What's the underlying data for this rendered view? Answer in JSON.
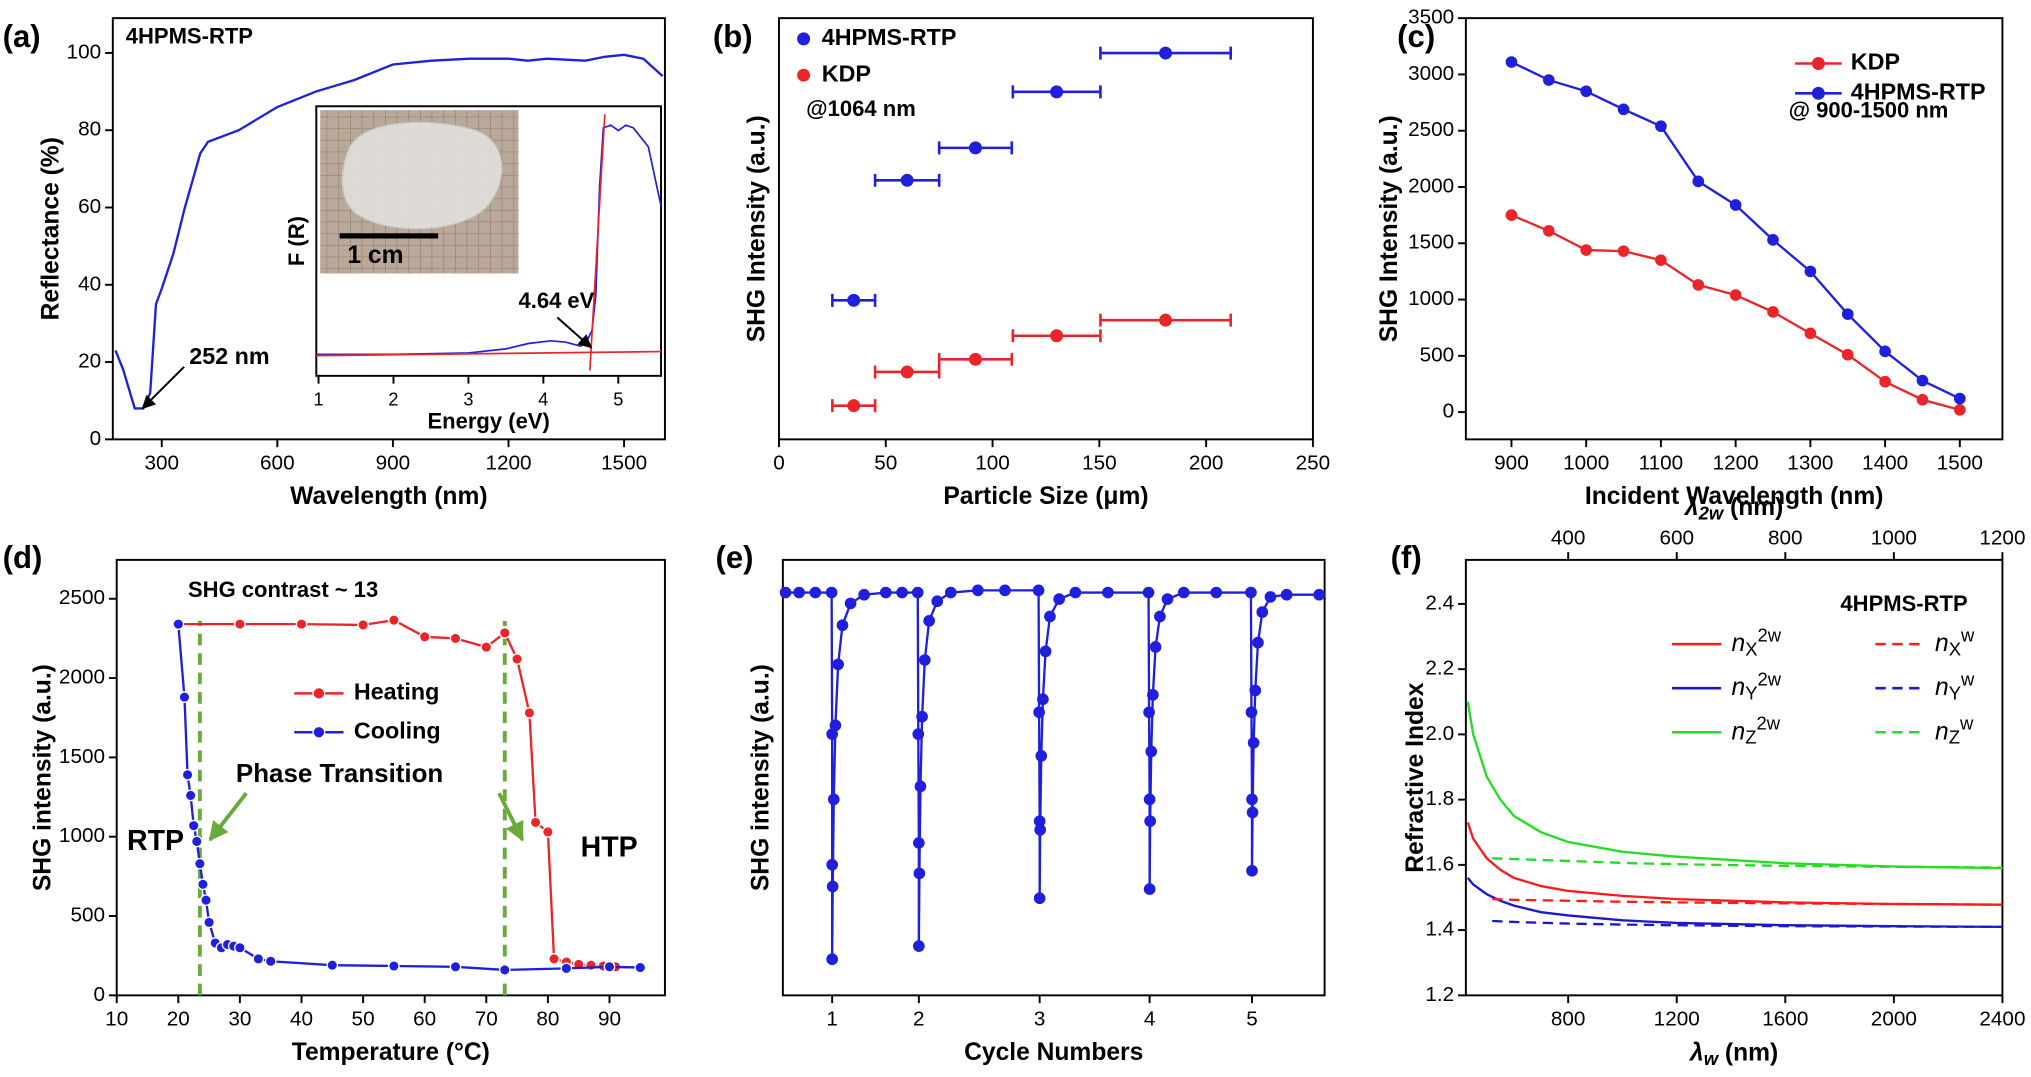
{
  "chart_data": [
    {
      "type": "line",
      "panel_label": "(a)",
      "xlabel": "Wavelength (nm)",
      "ylabel": "Reflectance (%)",
      "xlim": [
        173,
        1606
      ],
      "xticks": [
        300,
        600,
        900,
        1200,
        1500
      ],
      "ylim": [
        0,
        109
      ],
      "yticks": [
        0,
        20,
        40,
        60,
        80,
        100
      ],
      "annotations": [
        "4HPMS-RTP",
        "252 nm"
      ],
      "series": [
        {
          "color": "#1f1fdc",
          "x": [
            180,
            200,
            230,
            252,
            270,
            285,
            300,
            330,
            360,
            400,
            420,
            500,
            600,
            700,
            800,
            900,
            1000,
            1100,
            1200,
            1250,
            1300,
            1400,
            1450,
            1500,
            1550,
            1600
          ],
          "values": [
            23,
            18,
            8,
            8,
            12,
            35,
            39,
            48,
            60,
            74,
            77,
            80,
            86,
            90,
            93,
            97,
            98,
            98.5,
            98.5,
            98,
            98.5,
            98,
            99,
            99.5,
            98.5,
            94
          ]
        }
      ],
      "inset": {
        "type": "line",
        "xlabel": "Energy (eV)",
        "ylabel": "F (R)",
        "xlim": [
          0.97,
          5.57
        ],
        "xticks": [
          1,
          2,
          3,
          4,
          5
        ],
        "ylim": [
          0,
          100
        ],
        "annotations": [
          "4.64 eV",
          "1 cm"
        ],
        "series": [
          {
            "color": "#1f1fdc",
            "x": [
              0.97,
              2,
              3,
              3.5,
              3.8,
              4.1,
              4.3,
              4.5,
              4.6,
              4.65,
              4.7,
              4.75,
              4.8,
              4.9,
              5.0,
              5.1,
              5.2,
              5.4,
              5.57
            ],
            "values": [
              8,
              8,
              8.5,
              10,
              12,
              13,
              12.5,
              11,
              14,
              17,
              30,
              70,
              92,
              93,
              91,
              93,
              92,
              85,
              63
            ]
          },
          {
            "color": "#e8262a",
            "x": [
              0.97,
              5.57
            ],
            "values": [
              7.5,
              9
            ]
          },
          {
            "color": "#e8262a",
            "x": [
              4.62,
              4.82
            ],
            "values": [
              2,
              97
            ]
          }
        ]
      }
    },
    {
      "type": "scatter",
      "panel_label": "(b)",
      "xlabel": "Particle Size (μm)",
      "ylabel": "SHG Intensity (a.u.)",
      "xlim": [
        0,
        250
      ],
      "xticks": [
        0,
        50,
        100,
        150,
        200,
        250
      ],
      "ylim": [
        0,
        100
      ],
      "annotations": [
        "@1064 nm"
      ],
      "series": [
        {
          "name": "4HPMS-RTP",
          "color": "#1f1fdc",
          "x": [
            35,
            60,
            92,
            130,
            181
          ],
          "values": [
            33,
            61.5,
            69.2,
            82.5,
            91.7
          ],
          "xerr": [
            10,
            15,
            17,
            20.5,
            30.5
          ]
        },
        {
          "name": "KDP",
          "color": "#e8262a",
          "x": [
            35,
            60,
            92,
            130,
            181
          ],
          "values": [
            8,
            16,
            19,
            24.6,
            28.3
          ],
          "xerr": [
            10,
            15,
            17,
            20.5,
            30.5
          ]
        }
      ]
    },
    {
      "type": "line",
      "panel_label": "(c)",
      "xlabel": "Incident Wavelength (nm)",
      "ylabel": "SHG Intensity (a.u.)",
      "markers": true,
      "x": [
        900,
        950,
        1000,
        1050,
        1100,
        1150,
        1200,
        1250,
        1300,
        1350,
        1400,
        1450,
        1500
      ],
      "xlim": [
        839,
        1557
      ],
      "xticks": [
        900,
        1000,
        1100,
        1200,
        1300,
        1400,
        1500
      ],
      "ylim": [
        -242,
        3500
      ],
      "yticks": [
        0,
        500,
        1000,
        1500,
        2000,
        2500,
        3000,
        3500
      ],
      "annotations": [
        "@ 900-1500 nm"
      ],
      "series": [
        {
          "name": "KDP",
          "color": "#e8262a",
          "values": [
            1750,
            1610,
            1440,
            1430,
            1350,
            1130,
            1040,
            890,
            700,
            510,
            270,
            110,
            20
          ]
        },
        {
          "name": "4HPMS-RTP",
          "color": "#1f1fdc",
          "values": [
            3110,
            2950,
            2850,
            2690,
            2540,
            2050,
            1840,
            1530,
            1250,
            870,
            540,
            280,
            120
          ]
        }
      ]
    },
    {
      "type": "line",
      "panel_label": "(d)",
      "xlabel": "Temperature (°C)",
      "ylabel": "SHG intensity (a.u.)",
      "markers": true,
      "xlim": [
        10,
        99
      ],
      "xticks": [
        10,
        20,
        30,
        40,
        50,
        60,
        70,
        80,
        90
      ],
      "ylim": [
        0,
        2745
      ],
      "yticks": [
        0,
        500,
        1000,
        1500,
        2000,
        2500
      ],
      "vlines": [
        23.5,
        73
      ],
      "annotations": [
        "SHG contrast ~ 13",
        "Phase Transition",
        "RTP",
        "HTP"
      ],
      "series": [
        {
          "name": "Heating",
          "color": "#e8262a",
          "x": [
            20,
            30,
            40,
            50,
            55,
            60,
            65,
            70,
            73,
            75,
            77,
            78,
            80,
            81,
            83,
            85,
            87,
            89,
            91,
            95
          ],
          "values": [
            2340,
            2340,
            2340,
            2335,
            2365,
            2260,
            2250,
            2195,
            2285,
            2120,
            1780,
            1090,
            1030,
            230,
            210,
            195,
            190,
            185,
            180,
            175
          ]
        },
        {
          "name": "Cooling",
          "color": "#1f1fdc",
          "x": [
            20,
            21,
            21.5,
            22,
            22.5,
            23,
            23.5,
            24,
            24.5,
            25,
            26,
            27,
            28,
            29,
            30,
            33,
            35,
            45,
            55,
            65,
            73,
            83,
            90,
            95
          ],
          "values": [
            2340,
            1880,
            1390,
            1260,
            1070,
            970,
            830,
            700,
            600,
            460,
            330,
            300,
            320,
            310,
            300,
            230,
            215,
            190,
            185,
            180,
            160,
            170,
            180,
            175
          ]
        }
      ]
    },
    {
      "type": "line",
      "panel_label": "(e)",
      "xlabel": "Cycle Numbers",
      "ylabel": "SHG intensity (a.u.)",
      "markers": true,
      "xlim": [
        0,
        100
      ],
      "xticks": [
        {
          "value": 9.1,
          "label": "1"
        },
        {
          "value": 25.1,
          "label": "2"
        },
        {
          "value": 47.4,
          "label": "3"
        },
        {
          "value": 67.7,
          "label": "4"
        },
        {
          "value": 86.6,
          "label": "5"
        }
      ],
      "ylim": [
        0,
        100
      ],
      "series": [
        {
          "color": "#1f1fdc",
          "x": [
            0.5,
            3,
            6,
            9,
            9.1,
            9.1,
            9.1,
            9.2,
            9.4,
            9.7,
            10.2,
            11,
            12.5,
            15,
            19,
            22,
            24.9,
            25,
            25.1,
            25.1,
            25.2,
            25.4,
            25.7,
            26.2,
            27,
            28.5,
            31,
            36,
            41,
            47.2,
            47.3,
            47.4,
            47.4,
            47.5,
            47.7,
            48,
            48.5,
            49.3,
            51,
            54,
            60,
            67.5,
            67.6,
            67.7,
            67.7,
            67.8,
            68,
            68.3,
            68.8,
            69.6,
            71,
            74,
            80,
            86.4,
            86.5,
            86.6,
            86.6,
            86.7,
            86.9,
            87.2,
            87.7,
            88.5,
            90,
            93,
            99
          ],
          "values": [
            92.5,
            92.5,
            92.5,
            92.5,
            60,
            30,
            8.3,
            25,
            45,
            62,
            76,
            85,
            90,
            92,
            92.5,
            92.5,
            92.5,
            60,
            35,
            11.3,
            28,
            48,
            64,
            77,
            86,
            90.5,
            92.5,
            93,
            93,
            93,
            65,
            40,
            22.3,
            38,
            55,
            68,
            79,
            87,
            91,
            92.5,
            92.5,
            92.5,
            65,
            45,
            24.4,
            40,
            56,
            69,
            80,
            87,
            91,
            92.5,
            92.5,
            92.5,
            65,
            45,
            28.6,
            42,
            58,
            70,
            81,
            88,
            91.5,
            92,
            92
          ]
        }
      ]
    },
    {
      "type": "line",
      "panel_label": "(f)",
      "xlabel": "λw (nm)",
      "x2label": "λ2w (nm)",
      "ylabel": "Refractive Index",
      "xlim": [
        423,
        2400
      ],
      "xticks": [
        800,
        1200,
        1600,
        2000,
        2400
      ],
      "x2lim": [
        211.5,
        1200
      ],
      "x2ticks": [
        400,
        600,
        800,
        1000,
        1200
      ],
      "ylim": [
        1.2,
        2.535
      ],
      "yticks": [
        1.2,
        1.4,
        1.6,
        1.8,
        {
          "value": 2,
          "label": "2.0"
        },
        2.2,
        2.4
      ],
      "annotations": [
        "4HPMS-RTP"
      ],
      "series": [
        {
          "name": "nX2w",
          "color": "#ff1a1a",
          "x": [
            430,
            450,
            500,
            550,
            600,
            700,
            800,
            1000,
            1200,
            1600,
            2000,
            2400
          ],
          "values": [
            1.73,
            1.68,
            1.62,
            1.585,
            1.56,
            1.535,
            1.52,
            1.505,
            1.495,
            1.485,
            1.48,
            1.478
          ]
        },
        {
          "name": "nY2w",
          "color": "#1a1acc",
          "x": [
            430,
            450,
            500,
            550,
            600,
            700,
            800,
            1000,
            1200,
            1600,
            2000,
            2400
          ],
          "values": [
            1.56,
            1.54,
            1.51,
            1.49,
            1.475,
            1.455,
            1.445,
            1.43,
            1.422,
            1.415,
            1.412,
            1.41
          ]
        },
        {
          "name": "nZ2w",
          "color": "#22dd22",
          "x": [
            430,
            450,
            500,
            550,
            600,
            700,
            800,
            1000,
            1200,
            1600,
            2000,
            2400
          ],
          "values": [
            2.1,
            2.0,
            1.87,
            1.8,
            1.75,
            1.7,
            1.67,
            1.64,
            1.625,
            1.605,
            1.595,
            1.59
          ]
        },
        {
          "name": "nXw",
          "color": "#ff1a1a",
          "dash": true,
          "x": [
            520,
            600,
            800,
            1000,
            1200,
            1600,
            2000,
            2400
          ],
          "values": [
            1.495,
            1.493,
            1.49,
            1.487,
            1.485,
            1.482,
            1.48,
            1.478
          ]
        },
        {
          "name": "nYw",
          "color": "#1a1acc",
          "dash": true,
          "x": [
            520,
            600,
            800,
            1000,
            1200,
            1600,
            2000,
            2400
          ],
          "values": [
            1.428,
            1.425,
            1.42,
            1.417,
            1.415,
            1.412,
            1.411,
            1.41
          ]
        },
        {
          "name": "nZw",
          "color": "#22dd22",
          "dash": true,
          "x": [
            520,
            600,
            800,
            1000,
            1200,
            1600,
            2000,
            2400
          ],
          "values": [
            1.62,
            1.618,
            1.612,
            1.606,
            1.602,
            1.597,
            1.594,
            1.592
          ]
        }
      ]
    }
  ]
}
